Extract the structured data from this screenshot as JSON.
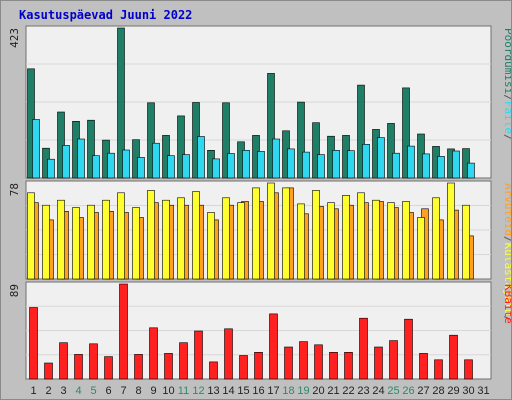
{
  "title": "Kasutuspäevad Juuni 2022",
  "colors": {
    "panel_bg": "#c0c0c0",
    "plot_bg": "#f0f0f0",
    "hits": "#1f7f66",
    "files": "#2fd8f0",
    "pages": "#ffa020",
    "visits": "#ffff30",
    "kbytes": "#ff2020",
    "weekday_tick": "#222222",
    "weekend_tick": "#2a8a6a"
  },
  "chart_data": [
    {
      "type": "bar",
      "panel": "top",
      "ymax_label": "423",
      "ylim": [
        0,
        423
      ],
      "categories": [
        "1",
        "2",
        "3",
        "4",
        "5",
        "6",
        "7",
        "8",
        "9",
        "10",
        "11",
        "12",
        "13",
        "14",
        "15",
        "16",
        "17",
        "18",
        "19",
        "20",
        "21",
        "22",
        "23",
        "24",
        "25",
        "26",
        "27",
        "28",
        "29",
        "30",
        "31"
      ],
      "series": [
        {
          "name": "Pöördumisi",
          "values": [
            308,
            84,
            186,
            160,
            163,
            107,
            423,
            108,
            212,
            120,
            175,
            213,
            78,
            212,
            102,
            120,
            295,
            133,
            214,
            156,
            118,
            120,
            262,
            137,
            154,
            254,
            124,
            89,
            82,
            83,
            0
          ]
        },
        {
          "name": "Faile",
          "values": [
            165,
            53,
            92,
            110,
            63,
            70,
            79,
            58,
            98,
            63,
            66,
            117,
            54,
            69,
            78,
            75,
            110,
            82,
            73,
            66,
            78,
            77,
            95,
            114,
            70,
            90,
            68,
            61,
            76,
            42,
            0
          ]
        }
      ],
      "side_labels": [
        "Pöördumisi",
        "/",
        "Faile",
        "/"
      ]
    },
    {
      "type": "bar",
      "panel": "middle",
      "ymax_label": "78",
      "ylim": [
        0,
        78
      ],
      "categories": [
        "1",
        "2",
        "3",
        "4",
        "5",
        "6",
        "7",
        "8",
        "9",
        "10",
        "11",
        "12",
        "13",
        "14",
        "15",
        "16",
        "17",
        "18",
        "19",
        "20",
        "21",
        "22",
        "23",
        "24",
        "25",
        "26",
        "27",
        "28",
        "29",
        "30",
        "31"
      ],
      "series": [
        {
          "name": "Külastajaid",
          "values": [
            62,
            48,
            55,
            50,
            54,
            55,
            54,
            50,
            62,
            60,
            60,
            60,
            48,
            60,
            63,
            63,
            70,
            74,
            53,
            59,
            57,
            60,
            62,
            63,
            58,
            54,
            57,
            48,
            56,
            35,
            0
          ]
        },
        {
          "name": "Arvuteid",
          "values": [
            70,
            60,
            64,
            58,
            60,
            64,
            70,
            58,
            72,
            64,
            66,
            71,
            54,
            66,
            62,
            74,
            78,
            74,
            61,
            72,
            62,
            68,
            70,
            64,
            62,
            63,
            50,
            66,
            78,
            60,
            0
          ]
        }
      ],
      "side_labels": [
        "Arvuteid",
        "/",
        "Külastajaid",
        "/"
      ]
    },
    {
      "type": "bar",
      "panel": "bottom",
      "ymax_label": "89",
      "ylim": [
        0,
        89
      ],
      "categories": [
        "1",
        "2",
        "3",
        "4",
        "5",
        "6",
        "7",
        "8",
        "9",
        "10",
        "11",
        "12",
        "13",
        "14",
        "15",
        "16",
        "17",
        "18",
        "19",
        "20",
        "21",
        "22",
        "23",
        "24",
        "25",
        "26",
        "27",
        "28",
        "29",
        "30",
        "31"
      ],
      "series": [
        {
          "name": "KBaite",
          "values": [
            67,
            15,
            34,
            23,
            33,
            21,
            89,
            23,
            48,
            24,
            34,
            45,
            16,
            47,
            22,
            25,
            61,
            30,
            35,
            32,
            25,
            25,
            57,
            30,
            36,
            56,
            24,
            18,
            41,
            18,
            0
          ]
        }
      ],
      "side_labels": [
        "KBaite"
      ]
    }
  ],
  "weekend_days": [
    "4",
    "5",
    "11",
    "12",
    "18",
    "19",
    "25",
    "26"
  ]
}
